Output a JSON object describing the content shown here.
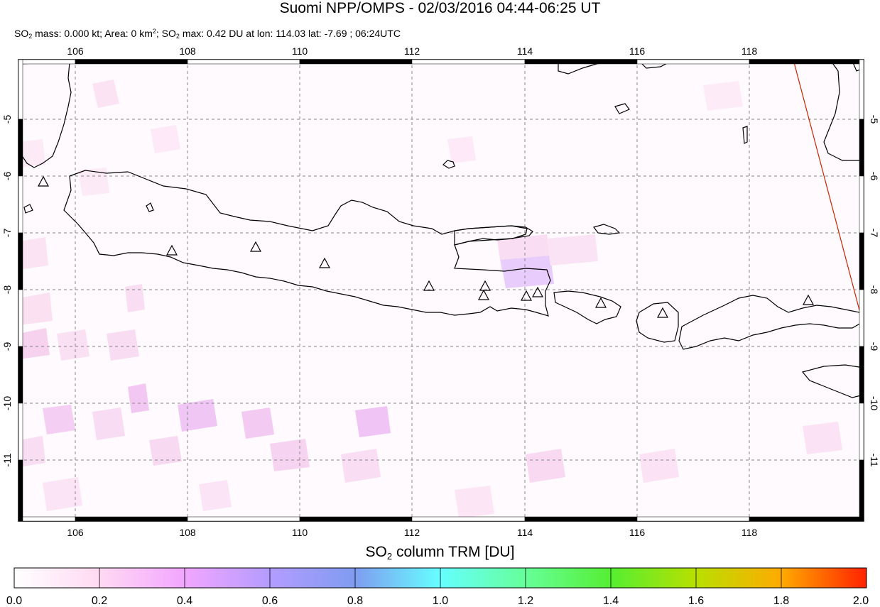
{
  "title": "Suomi NPP/OMPS - 02/03/2016 04:44-06:25 UT",
  "subtitle": {
    "mass_label": "SO",
    "mass_sub": "2",
    "mass_text": " mass: 0.000 kt; Area: 0 km",
    "area_sup": "2",
    "max_prefix": "; SO",
    "max_sub": "2",
    "max_text": " max: 0.42 DU at lon: 114.03 lat: -7.69 ; 06:24UTC"
  },
  "map": {
    "lon_ticks": [
      "106",
      "108",
      "110",
      "112",
      "114",
      "116",
      "118"
    ],
    "lat_ticks": [
      "-5",
      "-6",
      "-7",
      "-8",
      "-9",
      "-10",
      "-11"
    ],
    "volcano_count": 13,
    "colors": {
      "frame": "#000000",
      "grid": "#888888",
      "coast": "#000000",
      "orbit_edge": "#cc2200"
    }
  },
  "colorbar": {
    "title_prefix": "SO",
    "title_sub": "2",
    "title_suffix": " column TRM [DU]",
    "tick_labels": [
      "0.0",
      "0.2",
      "0.4",
      "0.6",
      "0.8",
      "1.0",
      "1.2",
      "1.4",
      "1.6",
      "1.8",
      "2.0"
    ],
    "colors": [
      "#ffffff",
      "#ffd9f2",
      "#f2a6ff",
      "#b39cff",
      "#7f9cf0",
      "#66ccff",
      "#66ffee",
      "#66ff99",
      "#55ee33",
      "#b8e000",
      "#ffcc00",
      "#ff8800",
      "#ff3300",
      "#ee1111"
    ]
  }
}
